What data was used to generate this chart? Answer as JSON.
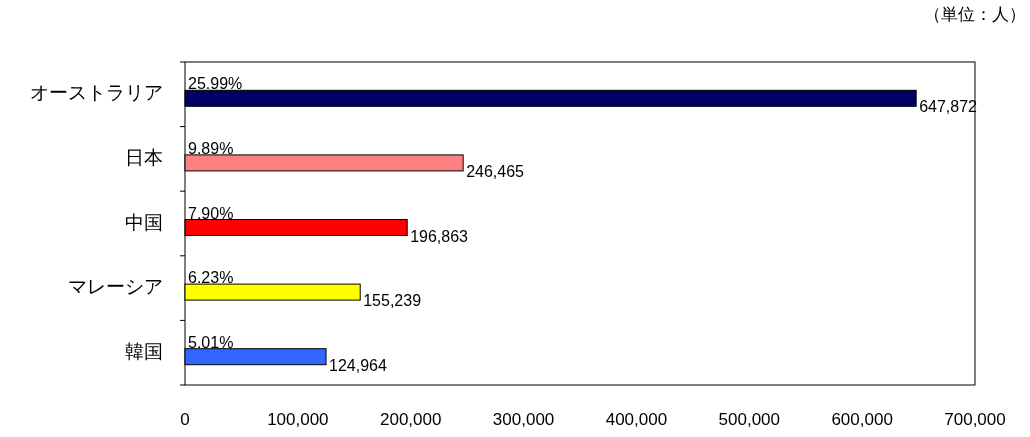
{
  "chart_data": {
    "type": "bar",
    "orientation": "horizontal",
    "categories": [
      "オーストラリア",
      "日本",
      "中国",
      "マレーシア",
      "韓国"
    ],
    "values": [
      647872,
      246465,
      196863,
      155239,
      124964
    ],
    "colors": [
      "#000066",
      "#ff8080",
      "#ff0000",
      "#ffff00",
      "#3366ff"
    ],
    "value_labels": [
      "647,872",
      "246,465",
      "196,863",
      "155,239",
      "124,964"
    ],
    "xlim": [
      0,
      700000
    ],
    "xticks": [
      0,
      {
        "value": 100000,
        "label": "100,000"
      },
      {
        "value": 200000,
        "label": "200,000"
      },
      {
        "value": 300000,
        "label": "300,000"
      },
      {
        "value": 400000,
        "label": "400,000"
      },
      {
        "value": 500000,
        "label": "500,000"
      },
      {
        "value": 600000,
        "label": "600,000"
      },
      {
        "value": 700000,
        "label": "700,000"
      }
    ],
    "annotations": [
      "（単位：人）",
      {
        "text": "25.99%",
        "y": "オーストラリア"
      },
      {
        "text": "9.89%",
        "y": "日本"
      },
      {
        "text": "7.90%",
        "y": "中国"
      },
      {
        "text": "6.23%",
        "y": "マレーシア"
      },
      {
        "text": "5.01%",
        "y": "韓国"
      }
    ]
  }
}
